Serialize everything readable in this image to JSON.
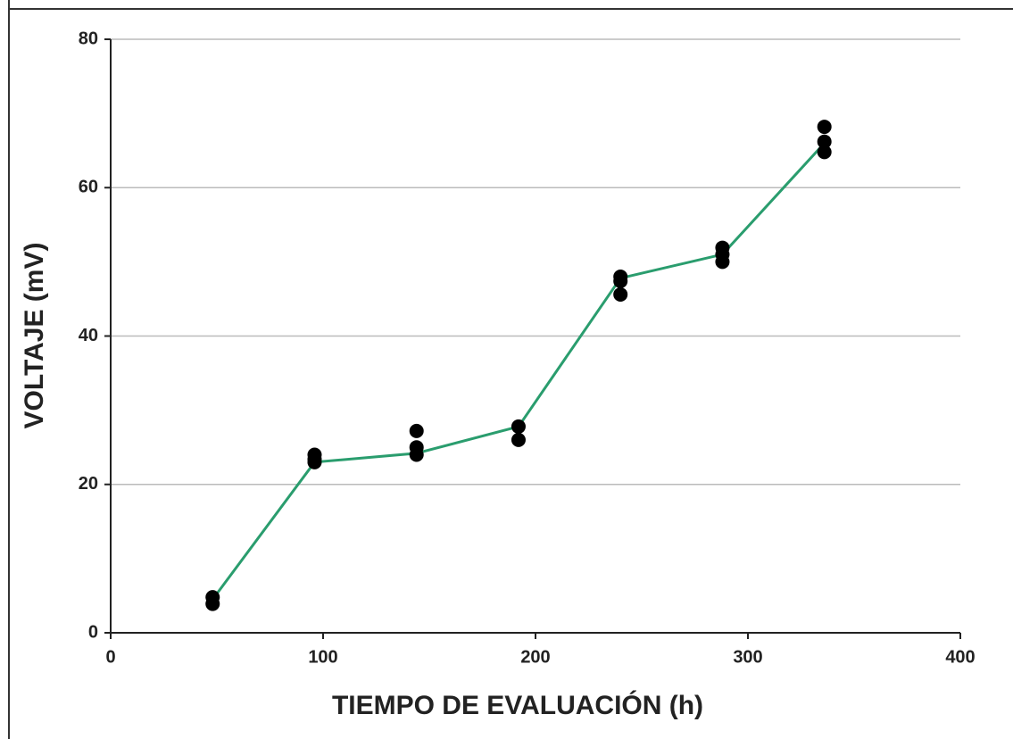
{
  "chart_data": {
    "type": "scatter",
    "xlabel": "TIEMPO DE EVALUACIÓN (h)",
    "ylabel": "VOLTAJE (mV)",
    "xlim": [
      0,
      400
    ],
    "xticks": [
      0,
      100,
      200,
      300,
      400
    ],
    "ylim": [
      0,
      80
    ],
    "yticks": [
      0,
      20,
      40,
      60,
      80
    ],
    "grid": true,
    "series": [
      {
        "color": "#000000",
        "x": [
          48,
          48,
          96,
          96,
          96,
          144,
          144,
          144,
          192,
          192,
          240,
          240,
          240,
          288,
          288,
          288,
          336,
          336,
          336
        ],
        "values": [
          4.8,
          3.9,
          24,
          23.4,
          23,
          27.2,
          25,
          24,
          27.8,
          26,
          48,
          47.4,
          45.6,
          51.9,
          51,
          50,
          68.2,
          66.2,
          64.8
        ]
      },
      {
        "type": "line",
        "color": "#2a9d6e",
        "x": [
          48,
          96,
          144,
          192,
          240,
          288,
          336
        ],
        "values": [
          4.5,
          23,
          24.2,
          27.8,
          47.8,
          51,
          66
        ]
      }
    ]
  }
}
